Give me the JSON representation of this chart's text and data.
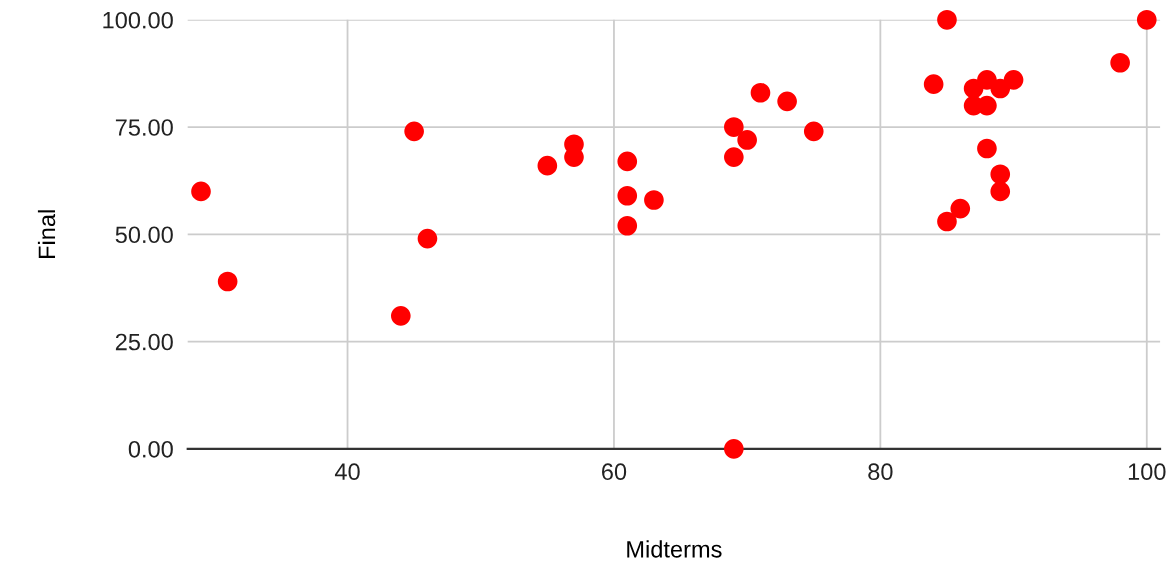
{
  "chart_data": {
    "type": "scatter",
    "xlabel": "Midterms",
    "ylabel": "Final",
    "x": [
      29,
      31,
      44,
      45,
      46,
      55,
      57,
      57,
      61,
      61,
      61,
      63,
      69,
      69,
      69,
      70,
      71,
      73,
      75,
      84,
      85,
      85,
      86,
      87,
      87,
      88,
      88,
      88,
      89,
      89,
      89,
      90,
      98,
      100
    ],
    "series": [
      {
        "color": "#ff0000",
        "values": [
          60,
          39,
          31,
          74,
          49,
          66,
          71,
          68,
          67,
          59,
          52,
          58,
          75,
          68,
          0,
          72,
          83,
          81,
          74,
          85,
          100,
          53,
          56,
          84,
          80,
          86,
          80,
          70,
          84,
          64,
          60,
          86,
          90,
          100
        ]
      }
    ],
    "xlim": [
      28,
      101
    ],
    "xticks": [
      40,
      60,
      80,
      100
    ],
    "ylim": [
      0,
      100
    ],
    "yticks": [
      {
        "value": 0,
        "label": "0.00"
      },
      {
        "value": 25,
        "label": "25.00"
      },
      {
        "value": 50,
        "label": "50.00"
      },
      {
        "value": 75,
        "label": "75.00"
      },
      {
        "value": 100,
        "label": "100.00"
      }
    ],
    "grid": true,
    "marker": "circle"
  }
}
